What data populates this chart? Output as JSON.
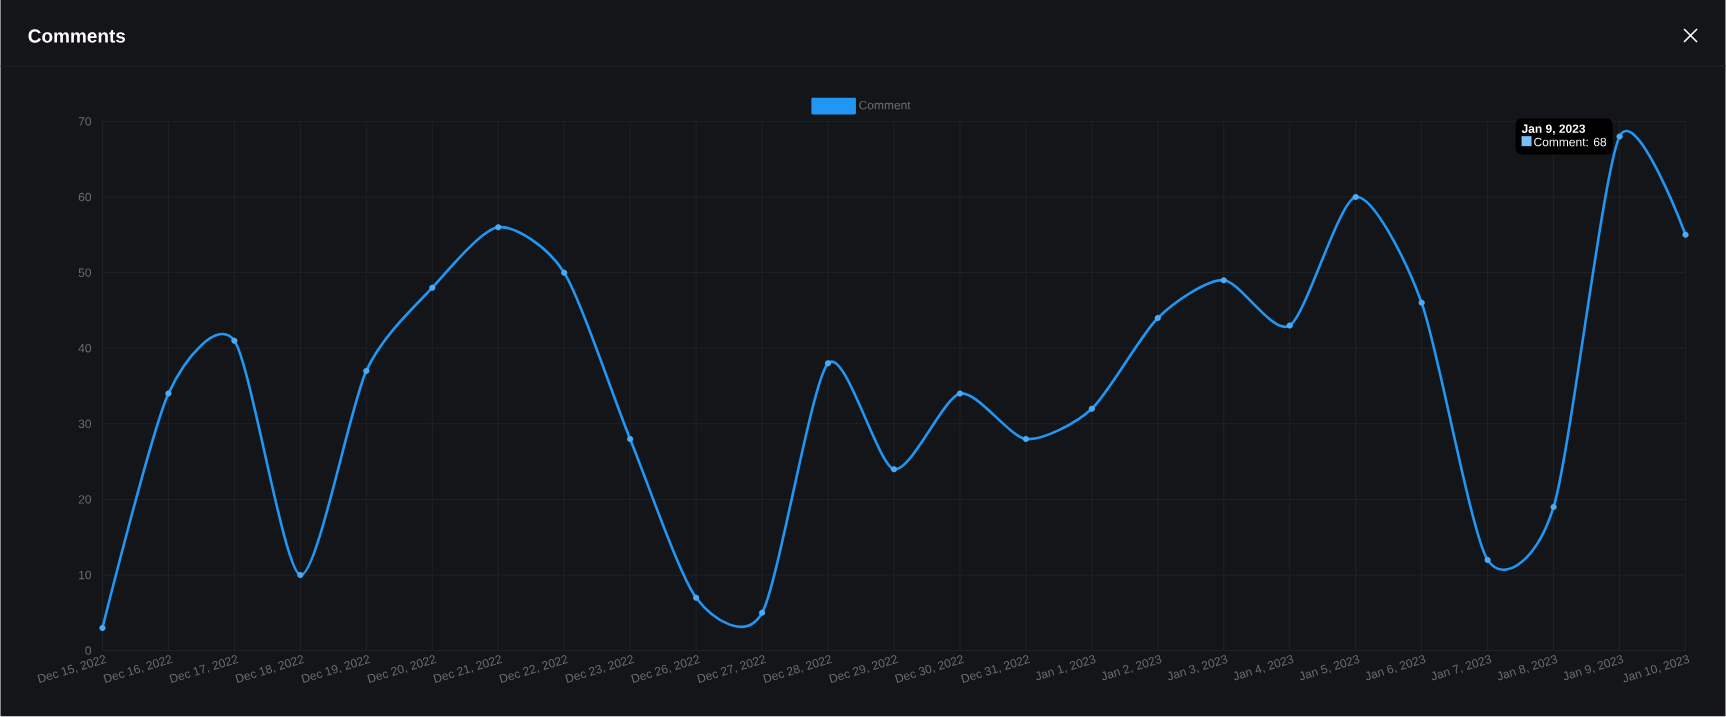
{
  "chart_data": {
    "type": "line",
    "title": "Comments",
    "categories": [
      "Dec 15, 2022",
      "Dec 16, 2022",
      "Dec 17, 2022",
      "Dec 18, 2022",
      "Dec 19, 2022",
      "Dec 20, 2022",
      "Dec 21, 2022",
      "Dec 22, 2022",
      "Dec 23, 2022",
      "Dec 26, 2022",
      "Dec 27, 2022",
      "Dec 28, 2022",
      "Dec 29, 2022",
      "Dec 30, 2022",
      "Dec 31, 2022",
      "Jan 1, 2023",
      "Jan 2, 2023",
      "Jan 3, 2023",
      "Jan 4, 2023",
      "Jan 5, 2023",
      "Jan 6, 2023",
      "Jan 7, 2023",
      "Jan 8, 2023",
      "Jan 9, 2023",
      "Jan 10, 2023"
    ],
    "series": [
      {
        "name": "Comment",
        "color": "#2196f3",
        "values": [
          3,
          34,
          41,
          10,
          37,
          48,
          56,
          50,
          28,
          7,
          5,
          38,
          24,
          34,
          28,
          32,
          44,
          49,
          43,
          60,
          46,
          12,
          19,
          68,
          55
        ]
      }
    ],
    "ylim": [
      0,
      70
    ],
    "yticks": [
      0,
      10,
      20,
      30,
      40,
      50,
      60,
      70
    ],
    "grid": true,
    "legend": "top",
    "marker": "circle",
    "line_style": "solid",
    "annotations": [
      {
        "text": "Jan 9, 2023",
        "x": "Jan 9, 2023",
        "y": 68
      },
      {
        "text": "Comment: 68",
        "x": "Jan 9, 2023",
        "y": 68
      }
    ]
  }
}
